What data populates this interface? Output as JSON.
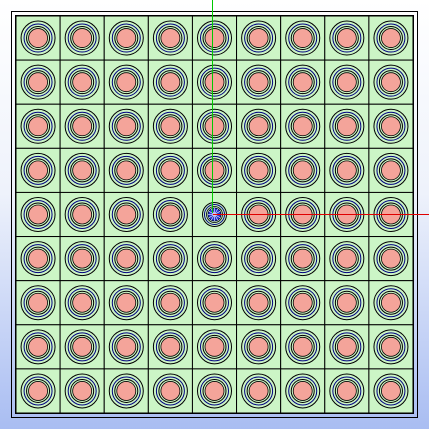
{
  "viewport": {
    "background_top": "#ffffff",
    "background_bottom": "#a9bdf2"
  },
  "lattice": {
    "rows": 9,
    "cols": 9,
    "cell_fill": "#ccf5c6",
    "grid_line_color": "#000000",
    "fuel_pin_fill": "#f4a49a",
    "clad_ring_color": "#000080",
    "outer_ring_color": "#000000"
  },
  "center_cell": {
    "row": 4,
    "col": 4,
    "fill": "#2233cc",
    "spoke_count": 12
  },
  "axes": {
    "vertical_axis_color": "#00c800",
    "horizontal_axis_color": "#e00000"
  }
}
